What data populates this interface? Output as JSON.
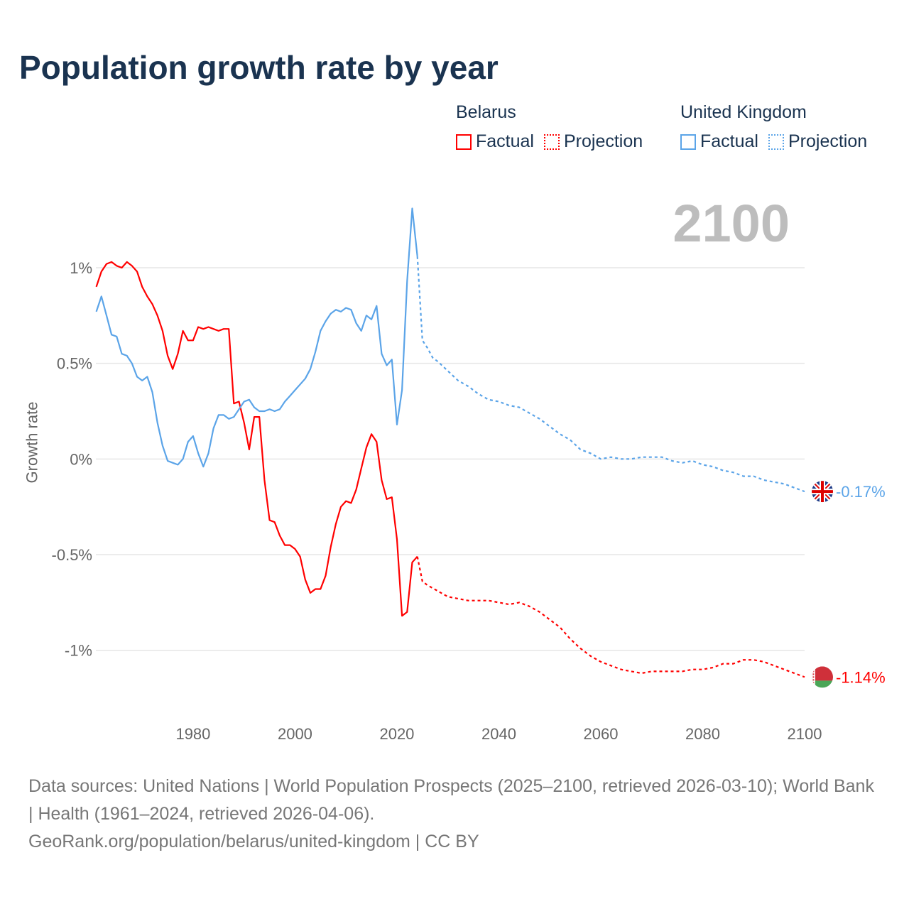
{
  "title": "Population growth rate by year",
  "legend": {
    "groups": [
      {
        "name": "Belarus",
        "factual": "Factual",
        "projection": "Projection",
        "color": "#ff0000"
      },
      {
        "name": "United Kingdom",
        "factual": "Factual",
        "projection": "Projection",
        "color": "#5ba4e8"
      }
    ]
  },
  "current_year": "2100",
  "end_labels": {
    "united_kingdom": "-0.17%",
    "belarus": "-1.14%"
  },
  "footer": {
    "sources": "Data sources: United Nations | World Population Prospects (2025–2100, retrieved 2026-03-10); World Bank | Health (1961–2024, retrieved 2026-04-06).",
    "credit": "GeoRank.org/population/belarus/united-kingdom | CC BY"
  },
  "chart_data": {
    "type": "line",
    "title": "Population growth rate by year",
    "xlabel": "",
    "ylabel": "Growth rate",
    "xlim": [
      1961,
      2100
    ],
    "ylim": [
      -1.35,
      1.36
    ],
    "x_ticks": [
      1980,
      2000,
      2020,
      2040,
      2060,
      2080,
      2100
    ],
    "x_tick_labels": [
      "1980",
      "2000",
      "2020",
      "2040",
      "2060",
      "2080",
      "2100"
    ],
    "y_ticks": [
      1,
      0.5,
      0,
      -0.5,
      -1
    ],
    "y_tick_labels": [
      "1%",
      "0.5%",
      "0%",
      "-0.5%",
      "-1%"
    ],
    "grid": true,
    "legend_placement": "top-right",
    "series": [
      {
        "name": "Belarus Factual",
        "color": "#ff0000",
        "style": "solid",
        "start_year": 1961,
        "values": [
          0.9,
          0.98,
          1.02,
          1.03,
          1.01,
          1.0,
          1.03,
          1.01,
          0.98,
          0.9,
          0.85,
          0.81,
          0.75,
          0.67,
          0.54,
          0.47,
          0.55,
          0.67,
          0.62,
          0.62,
          0.69,
          0.68,
          0.69,
          0.68,
          0.67,
          0.68,
          0.68,
          0.29,
          0.3,
          0.19,
          0.05,
          0.22,
          0.22,
          -0.11,
          -0.32,
          -0.33,
          -0.4,
          -0.45,
          -0.45,
          -0.47,
          -0.51,
          -0.63,
          -0.7,
          -0.68,
          -0.68,
          -0.61,
          -0.46,
          -0.34,
          -0.25,
          -0.22,
          -0.23,
          -0.16,
          -0.05,
          0.06,
          0.13,
          0.09,
          -0.11,
          -0.21,
          -0.2,
          -0.42,
          -0.82,
          -0.8,
          -0.54,
          -0.51
        ]
      },
      {
        "name": "Belarus Projection",
        "color": "#ff0000",
        "style": "dotted",
        "x": [
          2024,
          2025,
          2026,
          2028,
          2030,
          2032,
          2034,
          2036,
          2038,
          2040,
          2042,
          2044,
          2046,
          2048,
          2050,
          2052,
          2054,
          2056,
          2058,
          2060,
          2062,
          2064,
          2066,
          2068,
          2070,
          2072,
          2074,
          2076,
          2078,
          2080,
          2082,
          2084,
          2086,
          2088,
          2090,
          2092,
          2094,
          2096,
          2098,
          2100
        ],
        "values": [
          -0.51,
          -0.64,
          -0.66,
          -0.69,
          -0.72,
          -0.73,
          -0.74,
          -0.74,
          -0.74,
          -0.75,
          -0.76,
          -0.75,
          -0.77,
          -0.8,
          -0.84,
          -0.88,
          -0.94,
          -0.99,
          -1.03,
          -1.06,
          -1.08,
          -1.1,
          -1.11,
          -1.12,
          -1.11,
          -1.11,
          -1.11,
          -1.11,
          -1.1,
          -1.1,
          -1.09,
          -1.07,
          -1.07,
          -1.05,
          -1.05,
          -1.06,
          -1.08,
          -1.1,
          -1.12,
          -1.14
        ]
      },
      {
        "name": "United Kingdom Factual",
        "color": "#5ba4e8",
        "style": "solid",
        "start_year": 1961,
        "values": [
          0.77,
          0.85,
          0.75,
          0.65,
          0.64,
          0.55,
          0.54,
          0.5,
          0.43,
          0.41,
          0.43,
          0.35,
          0.19,
          0.07,
          -0.01,
          -0.02,
          -0.03,
          0.0,
          0.09,
          0.12,
          0.03,
          -0.04,
          0.03,
          0.16,
          0.23,
          0.23,
          0.21,
          0.22,
          0.26,
          0.3,
          0.31,
          0.27,
          0.25,
          0.25,
          0.26,
          0.25,
          0.26,
          0.3,
          0.33,
          0.36,
          0.39,
          0.42,
          0.47,
          0.56,
          0.67,
          0.72,
          0.76,
          0.78,
          0.77,
          0.79,
          0.78,
          0.71,
          0.67,
          0.75,
          0.73,
          0.8,
          0.55,
          0.49,
          0.52,
          0.18,
          0.36,
          0.93,
          1.31,
          1.06
        ]
      },
      {
        "name": "United Kingdom Projection",
        "color": "#5ba4e8",
        "style": "dotted",
        "x": [
          2024,
          2025,
          2026,
          2027,
          2028,
          2030,
          2032,
          2034,
          2036,
          2038,
          2040,
          2042,
          2044,
          2046,
          2048,
          2050,
          2052,
          2054,
          2056,
          2058,
          2060,
          2062,
          2064,
          2066,
          2068,
          2070,
          2072,
          2074,
          2076,
          2078,
          2080,
          2082,
          2084,
          2086,
          2088,
          2090,
          2092,
          2094,
          2096,
          2098,
          2100
        ],
        "values": [
          1.06,
          0.62,
          0.58,
          0.53,
          0.51,
          0.46,
          0.41,
          0.38,
          0.34,
          0.31,
          0.3,
          0.28,
          0.27,
          0.24,
          0.21,
          0.17,
          0.13,
          0.1,
          0.05,
          0.03,
          0.0,
          0.01,
          0.0,
          0.0,
          0.01,
          0.01,
          0.01,
          -0.01,
          -0.02,
          -0.01,
          -0.03,
          -0.04,
          -0.06,
          -0.07,
          -0.09,
          -0.09,
          -0.11,
          -0.12,
          -0.13,
          -0.15,
          -0.17
        ]
      }
    ]
  }
}
